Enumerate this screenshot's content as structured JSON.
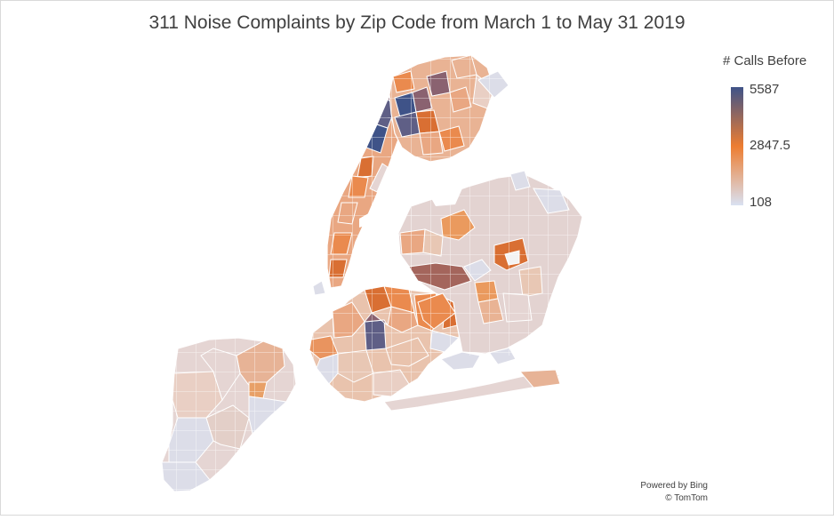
{
  "title": "311 Noise Complaints  by Zip Code from March 1 to May 31 2019",
  "legend": {
    "title": "# Calls Before",
    "max": "5587",
    "mid": "2847.5",
    "min": "108",
    "colors": {
      "max": "#3f5388",
      "mid": "#ed7d31",
      "min": "#d9e1f2"
    }
  },
  "attribution": {
    "line1": "Powered by Bing",
    "line2": "© TomTom"
  },
  "map": {
    "region": "New York City zip codes",
    "colors": {
      "very_low": "#dcdde8",
      "low": "#e8c7b4",
      "mid_low": "#e9a782",
      "mid": "#ea8a4e",
      "high": "#d96f33",
      "very_high": "#8a6270",
      "max": "#3f5388",
      "water": "#ffffff"
    }
  }
}
